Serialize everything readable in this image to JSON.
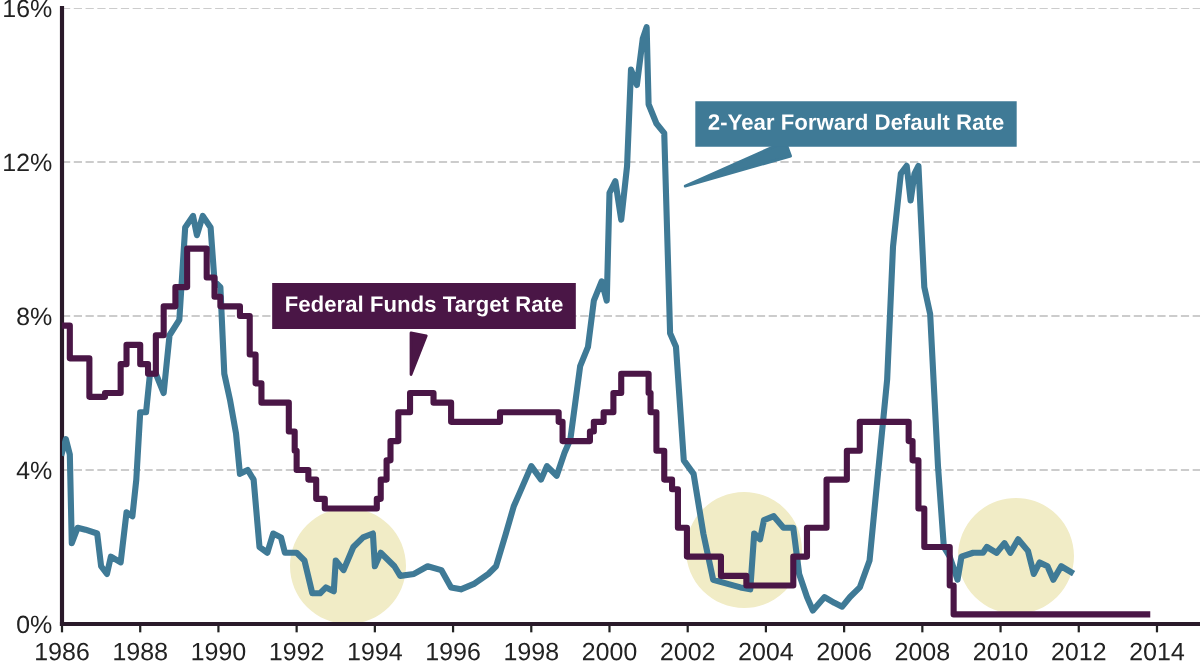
{
  "chart_data": {
    "type": "line",
    "legend": false,
    "grid": "y",
    "line_style": "solid",
    "marker": "none",
    "xlim": [
      1986,
      2015.1
    ],
    "xticks": [
      1986,
      1988,
      1990,
      1992,
      1994,
      1996,
      1998,
      2000,
      2002,
      2004,
      2006,
      2008,
      2010,
      2012,
      2014
    ],
    "ylim": [
      0,
      16
    ],
    "yticks": [
      {
        "value": 0,
        "label": "0%"
      },
      {
        "value": 4,
        "label": "4%"
      },
      {
        "value": 8,
        "label": "8%"
      },
      {
        "value": 12,
        "label": "12%"
      },
      {
        "value": 16,
        "label": "16%"
      }
    ],
    "series": [
      {
        "name": "Federal Funds Target Rate",
        "color": "#4a1646",
        "type": "step",
        "x": [
          1986.0,
          1986.2,
          1986.7,
          1987.1,
          1987.5,
          1987.65,
          1988.0,
          1988.2,
          1988.4,
          1988.6,
          1988.9,
          1989.2,
          1989.45,
          1989.7,
          1989.9,
          1990.05,
          1990.55,
          1990.8,
          1990.95,
          1991.1,
          1991.2,
          1991.6,
          1991.8,
          1991.95,
          1992.0,
          1992.3,
          1992.5,
          1992.72,
          1994.05,
          1994.15,
          1994.3,
          1994.4,
          1994.6,
          1994.9,
          1995.1,
          1995.5,
          1995.95,
          1997.2,
          1998.7,
          1998.8,
          1998.9,
          1999.5,
          1999.6,
          1999.85,
          2000.1,
          2000.3,
          2000.4,
          2001.0,
          2001.05,
          2001.2,
          2001.4,
          2001.6,
          2001.75,
          2001.98,
          2002.85,
          2003.5,
          2004.45,
          2004.7,
          2005.05,
          2005.55,
          2006.07,
          2006.4,
          2007.65,
          2007.75,
          2007.9,
          2008.05,
          2008.2,
          2008.7,
          2008.8,
          2008.95,
          2013.75
        ],
        "values": [
          7.75,
          6.9,
          5.9,
          6.0,
          6.75,
          7.25,
          6.75,
          6.5,
          7.5,
          8.25,
          8.75,
          9.75,
          9.75,
          9.0,
          8.5,
          8.25,
          8.0,
          7.0,
          6.25,
          5.75,
          5.75,
          5.75,
          5.0,
          4.5,
          4.0,
          3.75,
          3.25,
          3.0,
          3.25,
          3.75,
          4.25,
          4.75,
          5.5,
          6.0,
          6.0,
          5.75,
          5.25,
          5.5,
          5.25,
          4.75,
          4.75,
          5.0,
          5.25,
          5.5,
          6.0,
          6.5,
          6.5,
          6.0,
          5.5,
          4.5,
          3.75,
          3.5,
          2.5,
          1.75,
          1.25,
          1.0,
          1.0,
          1.75,
          2.5,
          3.75,
          4.5,
          5.25,
          4.75,
          4.25,
          3.0,
          2.0,
          2.0,
          1.0,
          0.25,
          0.25,
          0.25
        ]
      },
      {
        "name": "2-Year Forward Default Rate",
        "color": "#3f7a96",
        "x": [
          1986.0,
          1986.1,
          1986.2,
          1986.25,
          1986.4,
          1986.6,
          1986.9,
          1987.0,
          1987.15,
          1987.25,
          1987.5,
          1987.65,
          1987.8,
          1987.9,
          1988.0,
          1988.15,
          1988.25,
          1988.4,
          1988.6,
          1988.75,
          1989.0,
          1989.15,
          1989.35,
          1989.45,
          1989.6,
          1989.8,
          1989.9,
          1990.05,
          1990.15,
          1990.3,
          1990.45,
          1990.55,
          1990.75,
          1990.9,
          1991.05,
          1991.25,
          1991.4,
          1991.6,
          1991.7,
          1992.0,
          1992.2,
          1992.4,
          1992.6,
          1992.75,
          1992.95,
          1993.0,
          1993.2,
          1993.45,
          1993.7,
          1993.95,
          1994.0,
          1994.15,
          1994.5,
          1994.65,
          1995.0,
          1995.35,
          1995.7,
          1995.95,
          1996.2,
          1996.55,
          1996.9,
          1997.1,
          1997.35,
          1997.55,
          1997.7,
          1998.0,
          1998.25,
          1998.4,
          1998.65,
          1998.85,
          1999.0,
          1999.25,
          1999.45,
          1999.6,
          1999.8,
          1999.93,
          2000.0,
          2000.15,
          2000.3,
          2000.45,
          2000.55,
          2000.7,
          2000.85,
          2000.95,
          2001.0,
          2001.2,
          2001.4,
          2001.55,
          2001.7,
          2001.9,
          2002.15,
          2002.4,
          2002.65,
          2003.0,
          2003.35,
          2003.6,
          2003.7,
          2003.85,
          2003.95,
          2004.2,
          2004.45,
          2004.7,
          2004.85,
          2005.05,
          2005.2,
          2005.5,
          2005.75,
          2005.95,
          2006.15,
          2006.4,
          2006.65,
          2006.85,
          2007.1,
          2007.25,
          2007.45,
          2007.6,
          2007.7,
          2007.8,
          2007.9,
          2008.05,
          2008.2,
          2008.4,
          2008.55,
          2008.7,
          2008.9,
          2009.0,
          2009.3,
          2009.55,
          2009.65,
          2009.9,
          2010.1,
          2010.25,
          2010.45,
          2010.7,
          2010.85,
          2011.0,
          2011.2,
          2011.35,
          2011.55,
          2011.8
        ],
        "values": [
          4.45,
          4.8,
          4.4,
          2.1,
          2.5,
          2.45,
          2.35,
          1.5,
          1.3,
          1.75,
          1.6,
          2.9,
          2.8,
          3.75,
          5.5,
          5.5,
          6.5,
          6.5,
          6.0,
          7.5,
          7.9,
          10.3,
          10.6,
          10.1,
          10.6,
          10.3,
          8.9,
          8.75,
          6.5,
          5.8,
          4.95,
          3.9,
          4.0,
          3.75,
          2.0,
          1.85,
          2.35,
          2.25,
          1.85,
          1.85,
          1.65,
          0.8,
          0.8,
          0.95,
          0.85,
          1.65,
          1.4,
          2.0,
          2.25,
          2.35,
          1.5,
          1.85,
          1.5,
          1.25,
          1.3,
          1.5,
          1.4,
          0.95,
          0.9,
          1.05,
          1.3,
          1.5,
          2.35,
          3.05,
          3.4,
          4.1,
          3.75,
          4.1,
          3.85,
          4.45,
          4.8,
          6.7,
          7.2,
          8.4,
          8.9,
          8.4,
          11.2,
          11.5,
          10.5,
          11.9,
          14.4,
          14.0,
          15.2,
          15.5,
          13.5,
          13.0,
          12.75,
          7.55,
          7.2,
          4.25,
          3.9,
          2.35,
          1.15,
          1.05,
          0.95,
          0.9,
          2.35,
          2.2,
          2.7,
          2.8,
          2.5,
          2.5,
          1.3,
          0.7,
          0.35,
          0.7,
          0.55,
          0.45,
          0.7,
          0.95,
          1.65,
          3.75,
          6.35,
          9.8,
          11.7,
          11.9,
          11.0,
          11.7,
          11.9,
          8.75,
          8.05,
          4.1,
          2.0,
          1.75,
          1.15,
          1.75,
          1.85,
          1.85,
          2.0,
          1.85,
          2.1,
          1.85,
          2.2,
          1.9,
          1.3,
          1.6,
          1.5,
          1.15,
          1.5,
          1.35
        ]
      }
    ]
  }
}
